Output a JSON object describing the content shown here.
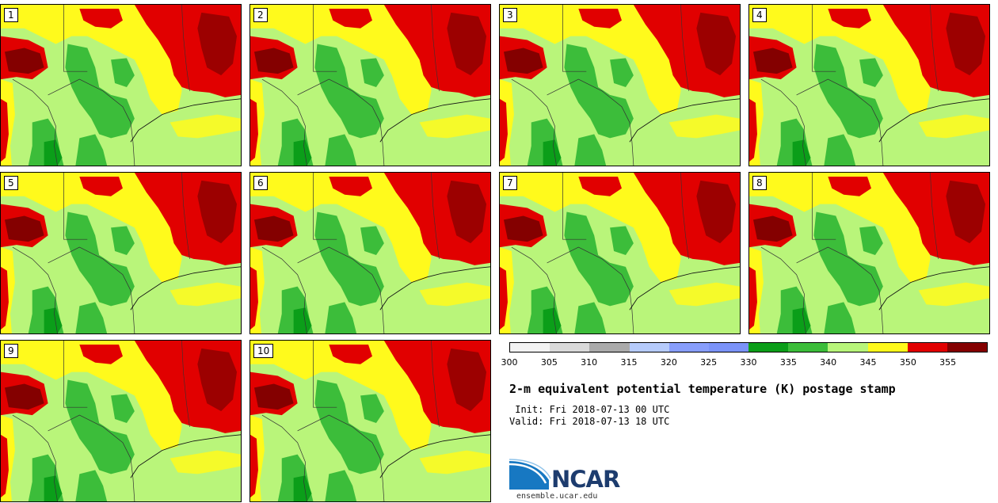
{
  "panels": [
    {
      "label": "1"
    },
    {
      "label": "2"
    },
    {
      "label": "3"
    },
    {
      "label": "4"
    },
    {
      "label": "5"
    },
    {
      "label": "6"
    },
    {
      "label": "7"
    },
    {
      "label": "8"
    },
    {
      "label": "9"
    },
    {
      "label": "10"
    }
  ],
  "legend": {
    "colors": [
      "#f2f2f2",
      "#dadada",
      "#aaaaaa",
      "#b6cbfb",
      "#889efb",
      "#7b93f8",
      "#0b9e19",
      "#3cbd3a",
      "#b8f57a",
      "#fffa1c",
      "#e10000",
      "#840000"
    ],
    "ticks": [
      "300",
      "305",
      "310",
      "315",
      "320",
      "325",
      "330",
      "335",
      "340",
      "345",
      "350",
      "355"
    ]
  },
  "title": "2-m equivalent potential temperature (K) postage stamp",
  "init": " Init: Fri 2018-07-13 00 UTC",
  "valid": "Valid: Fri 2018-07-13 18 UTC",
  "logo": {
    "text": "NCAR",
    "url_text": "ensemble.ucar.edu",
    "name": "ncar-logo"
  },
  "map_colors": {
    "light_green": "#b9f57a",
    "mid_green": "#3cbd3a",
    "dark_green": "#0b9e19",
    "yellow": "#fffa1c",
    "red": "#e10000",
    "dark_red": "#840000"
  }
}
